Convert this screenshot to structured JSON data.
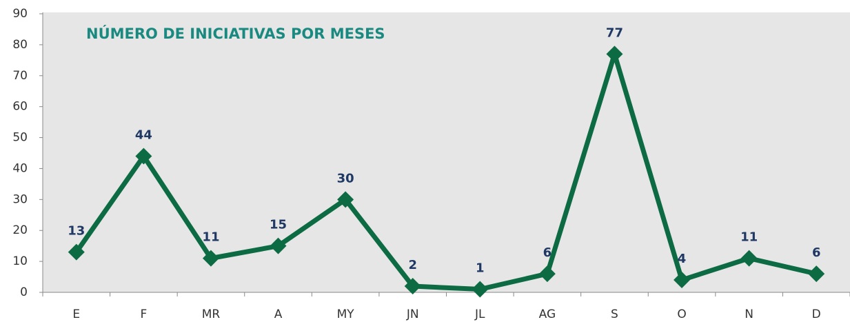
{
  "chart_data": {
    "type": "line",
    "title": "NÚMERO DE INICIATIVAS POR MESES",
    "categories": [
      "E",
      "F",
      "MR",
      "A",
      "MY",
      "JN",
      "JL",
      "AG",
      "S",
      "O",
      "N",
      "D"
    ],
    "series": [
      {
        "name": "Iniciativas",
        "color": "#0d6b43",
        "values": [
          13,
          44,
          11,
          15,
          30,
          2,
          1,
          6,
          77,
          4,
          11,
          6
        ]
      }
    ],
    "ylim": [
      0,
      90
    ],
    "yticks": [
      0,
      10,
      20,
      30,
      40,
      50,
      60,
      70,
      80,
      90
    ],
    "grid": false,
    "legend": false
  }
}
